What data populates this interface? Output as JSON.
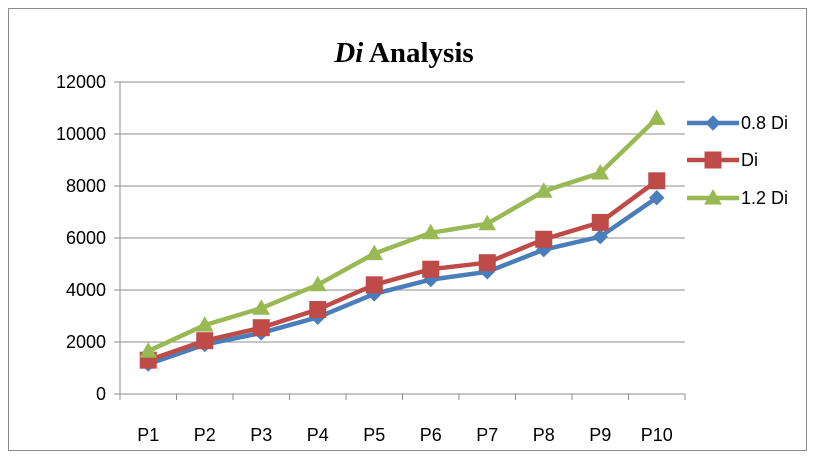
{
  "chart_data": {
    "type": "line",
    "title_italic": "Di",
    "title_rest": " Analysis",
    "categories": [
      "P1",
      "P2",
      "P3",
      "P4",
      "P5",
      "P6",
      "P7",
      "P8",
      "P9",
      "P10"
    ],
    "ylim": [
      0,
      12000
    ],
    "yticks": [
      0,
      2000,
      4000,
      6000,
      8000,
      10000,
      12000
    ],
    "grid": "horizontal",
    "legend_position": "right",
    "series": [
      {
        "name": "0.8 Di",
        "color": "#4a7ebb",
        "marker": "diamond",
        "values": [
          1150,
          1900,
          2350,
          2950,
          3850,
          4400,
          4700,
          5550,
          6050,
          7550
        ]
      },
      {
        "name": "Di",
        "color": "#be4b48",
        "marker": "square",
        "values": [
          1300,
          2050,
          2550,
          3250,
          4200,
          4800,
          5050,
          5950,
          6600,
          8200
        ]
      },
      {
        "name": "1.2 Di",
        "color": "#98b954",
        "marker": "triangle",
        "values": [
          1650,
          2650,
          3300,
          4200,
          5400,
          6200,
          6550,
          7800,
          8500,
          10600
        ]
      }
    ]
  }
}
